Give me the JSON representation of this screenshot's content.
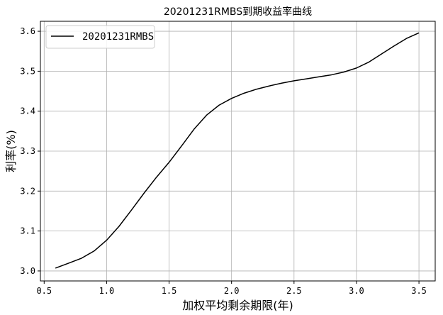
{
  "chart_data": {
    "type": "line",
    "title": "20201231RMBS到期收益率曲线",
    "xlabel": "加权平均剩余期限(年)",
    "ylabel": "利率(%)",
    "xlim": [
      0.47,
      3.63
    ],
    "ylim": [
      2.975,
      3.625
    ],
    "xticks": [
      0.5,
      1.0,
      1.5,
      2.0,
      2.5,
      3.0,
      3.5
    ],
    "yticks": [
      3.0,
      3.1,
      3.2,
      3.3,
      3.4,
      3.5,
      3.6
    ],
    "xtick_labels": [
      "0.5",
      "1.0",
      "1.5",
      "2.0",
      "2.5",
      "3.0",
      "3.5"
    ],
    "ytick_labels": [
      "3.0",
      "3.1",
      "3.2",
      "3.3",
      "3.4",
      "3.5",
      "3.6"
    ],
    "grid": true,
    "legend_position": "top-left",
    "series": [
      {
        "name": "20201231RMBS",
        "color": "#000000",
        "x": [
          0.59,
          0.7,
          0.8,
          0.9,
          1.0,
          1.1,
          1.2,
          1.3,
          1.4,
          1.5,
          1.6,
          1.7,
          1.8,
          1.9,
          2.0,
          2.1,
          2.2,
          2.3,
          2.4,
          2.5,
          2.6,
          2.7,
          2.8,
          2.9,
          3.0,
          3.1,
          3.2,
          3.3,
          3.4,
          3.5
        ],
        "y": [
          3.007,
          3.02,
          3.032,
          3.05,
          3.077,
          3.112,
          3.153,
          3.195,
          3.235,
          3.272,
          3.313,
          3.355,
          3.39,
          3.415,
          3.432,
          3.445,
          3.455,
          3.463,
          3.47,
          3.476,
          3.481,
          3.486,
          3.491,
          3.498,
          3.508,
          3.523,
          3.543,
          3.563,
          3.582,
          3.596
        ]
      }
    ]
  }
}
